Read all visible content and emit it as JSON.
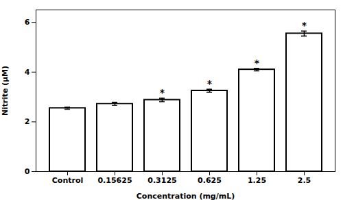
{
  "chart_data": {
    "type": "bar",
    "categories": [
      "Control",
      "0.15625",
      "0.3125",
      "0.625",
      "1.25",
      "2.5"
    ],
    "values": [
      2.55,
      2.72,
      2.88,
      3.25,
      4.1,
      5.55
    ],
    "errors": [
      0.04,
      0.06,
      0.07,
      0.06,
      0.05,
      0.1
    ],
    "annotations": [
      {
        "x": "0.3125",
        "text": "*"
      },
      {
        "x": "0.625",
        "text": "*"
      },
      {
        "x": "1.25",
        "text": "*"
      },
      {
        "x": "2.5",
        "text": "*"
      }
    ],
    "xlabel": "Concentration (mg/mL)",
    "ylabel": "Nitrite (μM)",
    "ylim": [
      0,
      6.5
    ],
    "yticks": [
      0,
      2,
      4,
      6
    ],
    "color": "#ffffff",
    "grid": false
  }
}
